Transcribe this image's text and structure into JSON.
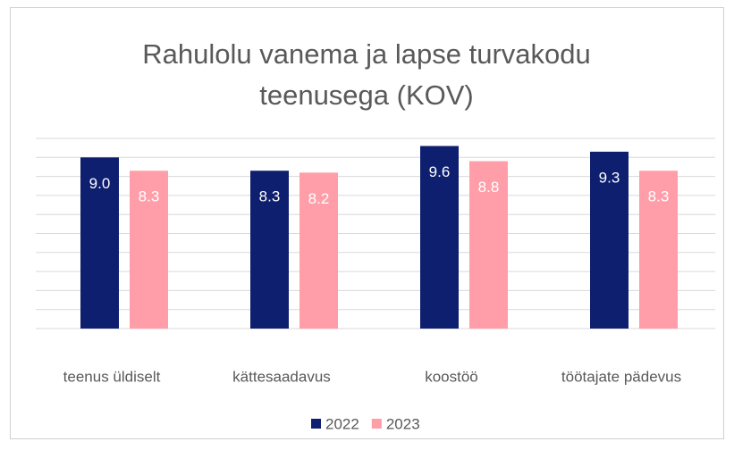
{
  "chart_data": {
    "type": "bar",
    "title": "Rahulolu vanema ja lapse turvakodu teenusega (KOV)",
    "categories": [
      "teenus üldiselt",
      "kättesaadavus",
      "koostöö",
      "töötajate pädevus"
    ],
    "series": [
      {
        "name": "2022",
        "color": "#0d1f6e",
        "values": [
          9.0,
          8.3,
          9.6,
          9.3
        ],
        "value_labels": [
          "9.0",
          "8.3",
          "9.6",
          "9.3"
        ]
      },
      {
        "name": "2023",
        "color": "#ff9ea8",
        "values": [
          8.3,
          8.2,
          8.8,
          8.3
        ],
        "value_labels": [
          "8.3",
          "8.2",
          "8.8",
          "8.3"
        ]
      }
    ],
    "ylim": [
      0,
      10
    ],
    "yticks": [
      0,
      1,
      2,
      3,
      4,
      5,
      6,
      7,
      8,
      9,
      10
    ],
    "grid": true,
    "legend": "bottom"
  }
}
